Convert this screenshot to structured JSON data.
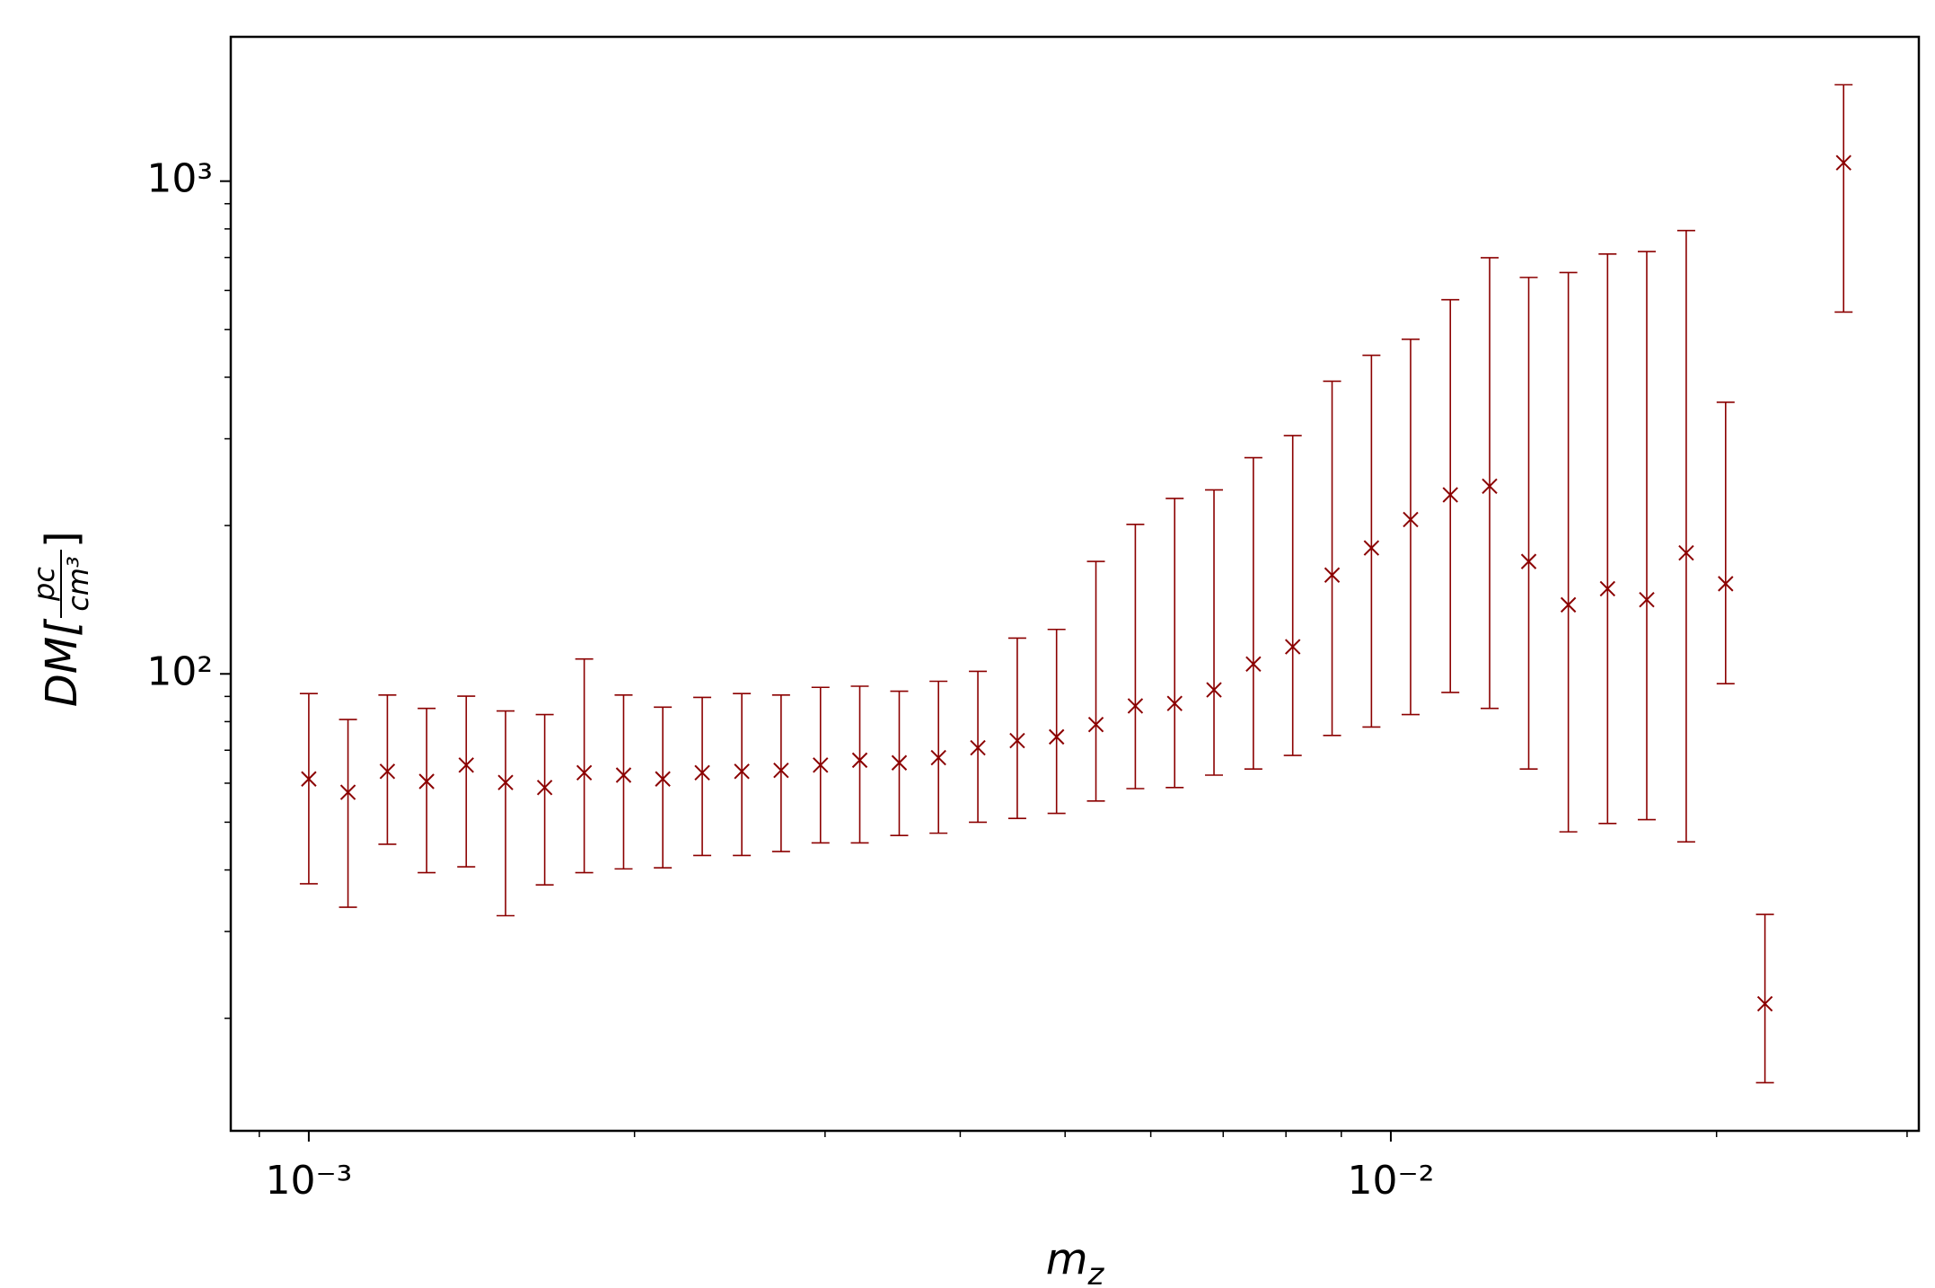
{
  "chart_data": {
    "type": "errorbar",
    "xlabel": {
      "text": "m",
      "subscript": "z"
    },
    "ylabel": {
      "prefix": "DM[",
      "numerator": "pc",
      "denominator": "cm³",
      "suffix": "]"
    },
    "xscale": "log",
    "yscale": "log",
    "xlim": [
      0.000847,
      0.03076
    ],
    "ylim": [
      11.82,
      1963
    ],
    "xticks": [
      {
        "value": 0.001,
        "label": "10⁻³"
      },
      {
        "value": 0.01,
        "label": "10⁻²"
      }
    ],
    "xticks_minor": [
      0.0009,
      0.002,
      0.003,
      0.004,
      0.005,
      0.006,
      0.007,
      0.008,
      0.009,
      0.02,
      0.03
    ],
    "yticks": [
      {
        "value": 100,
        "label": "10²"
      },
      {
        "value": 1000,
        "label": "10³"
      }
    ],
    "yticks_minor": [
      20,
      30,
      40,
      50,
      60,
      70,
      80,
      90,
      200,
      300,
      400,
      500,
      600,
      700,
      800,
      900
    ],
    "series": [
      {
        "color": "#8b0000",
        "marker": "x",
        "x": [
          0.001,
          0.001087,
          0.001182,
          0.001285,
          0.001398,
          0.00152,
          0.001652,
          0.001797,
          0.001954,
          0.002124,
          0.00231,
          0.002513,
          0.002732,
          0.002971,
          0.00323,
          0.003513,
          0.003819,
          0.004153,
          0.004516,
          0.00491,
          0.005339,
          0.005806,
          0.006313,
          0.006864,
          0.007464,
          0.008116,
          0.008825,
          0.009596,
          0.01043,
          0.01135,
          0.01234,
          0.01341,
          0.01459,
          0.01586,
          0.01724,
          0.01875,
          0.02039,
          0.02217,
          0.02621
        ],
        "values": [
          61.2,
          57.5,
          63.4,
          60.5,
          65.3,
          60.2,
          58.8,
          63.0,
          62.3,
          61.2,
          63.0,
          63.4,
          63.7,
          65.3,
          66.8,
          66.0,
          67.6,
          70.8,
          73.2,
          74.5,
          78.9,
          86.1,
          87.1,
          92.8,
          104.7,
          113.5,
          158.7,
          180.1,
          205.7,
          230.9,
          240.4,
          169.1,
          138.1,
          148.9,
          141.4,
          176.0,
          152.4,
          21.4,
          1090
        ],
        "lower": [
          37.5,
          33.6,
          45.1,
          39.5,
          40.6,
          32.3,
          37.3,
          39.5,
          40.2,
          40.4,
          42.8,
          42.8,
          43.6,
          45.4,
          45.4,
          47.0,
          47.5,
          50.0,
          50.9,
          52.1,
          55.2,
          58.5,
          58.8,
          62.3,
          64.1,
          68.3,
          75.0,
          78.0,
          82.7,
          91.7,
          85.1,
          64.1,
          47.8,
          49.7,
          50.6,
          45.6,
          95.5,
          14.8,
          542.5
        ],
        "upper": [
          91.2,
          80.8,
          90.6,
          85.1,
          90.1,
          84.1,
          82.7,
          107.2,
          90.6,
          85.6,
          89.6,
          91.2,
          90.6,
          93.9,
          94.4,
          92.2,
          96.6,
          101.2,
          118.2,
          123.1,
          169.1,
          201.1,
          227.0,
          236.3,
          274.6,
          304.5,
          392.6,
          443.2,
          477.7,
          574.6,
          699.3,
          637.7,
          652.5,
          711.5,
          719.7,
          794.0,
          355.9,
          32.5,
          1569
        ]
      }
    ]
  }
}
